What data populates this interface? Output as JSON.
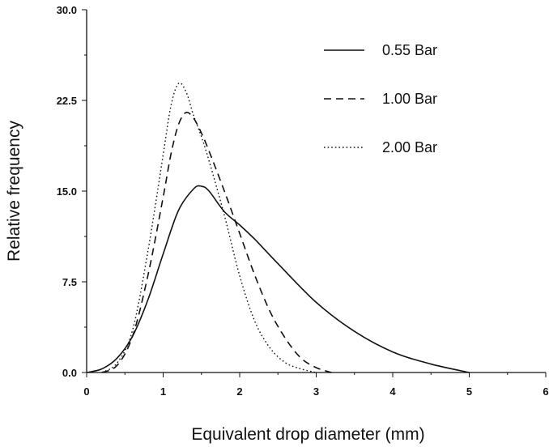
{
  "chart_data": {
    "type": "line",
    "title": "",
    "xlabel": "Equivalent drop diameter (mm)",
    "ylabel": "Relative frequency",
    "xlim": [
      0,
      6
    ],
    "ylim": [
      0,
      30
    ],
    "x_ticks": [
      "0",
      "1",
      "2",
      "3",
      "4",
      "5",
      "6"
    ],
    "y_ticks": [
      "0.0",
      "7.5",
      "15.0",
      "22.5",
      "30.0"
    ],
    "grid": false,
    "legend_position": "top-right",
    "series": [
      {
        "name": "0.55 Bar",
        "style": "solid",
        "x": [
          0,
          0.2,
          0.4,
          0.6,
          0.8,
          1.0,
          1.2,
          1.4,
          1.5,
          1.6,
          1.8,
          2.0,
          2.2,
          2.5,
          3.0,
          3.5,
          4.0,
          4.5,
          5.0
        ],
        "y": [
          0,
          0.3,
          1.2,
          3.0,
          6.0,
          9.8,
          13.4,
          15.2,
          15.4,
          15.0,
          13.3,
          12.2,
          11.0,
          9.0,
          5.8,
          3.4,
          1.7,
          0.7,
          0
        ]
      },
      {
        "name": "1.00 Bar",
        "style": "dashed",
        "x": [
          0.2,
          0.4,
          0.6,
          0.8,
          1.0,
          1.1,
          1.2,
          1.3,
          1.4,
          1.5,
          1.6,
          1.8,
          2.0,
          2.2,
          2.4,
          2.6,
          2.8,
          3.0,
          3.2
        ],
        "y": [
          0,
          0.6,
          3.0,
          8.0,
          14.5,
          18.0,
          20.5,
          21.5,
          21.0,
          19.8,
          18.3,
          15.0,
          11.5,
          8.0,
          5.0,
          2.8,
          1.2,
          0.4,
          0
        ]
      },
      {
        "name": "2.00 Bar",
        "style": "dotted",
        "x": [
          0.2,
          0.4,
          0.6,
          0.8,
          1.0,
          1.1,
          1.2,
          1.3,
          1.4,
          1.5,
          1.6,
          1.8,
          2.0,
          2.2,
          2.4,
          2.6,
          2.8,
          3.0
        ],
        "y": [
          0,
          0.8,
          3.5,
          10.0,
          18.0,
          22.0,
          23.9,
          23.2,
          21.2,
          19.5,
          17.5,
          13.0,
          8.0,
          4.2,
          2.0,
          0.8,
          0.3,
          0
        ]
      }
    ]
  }
}
